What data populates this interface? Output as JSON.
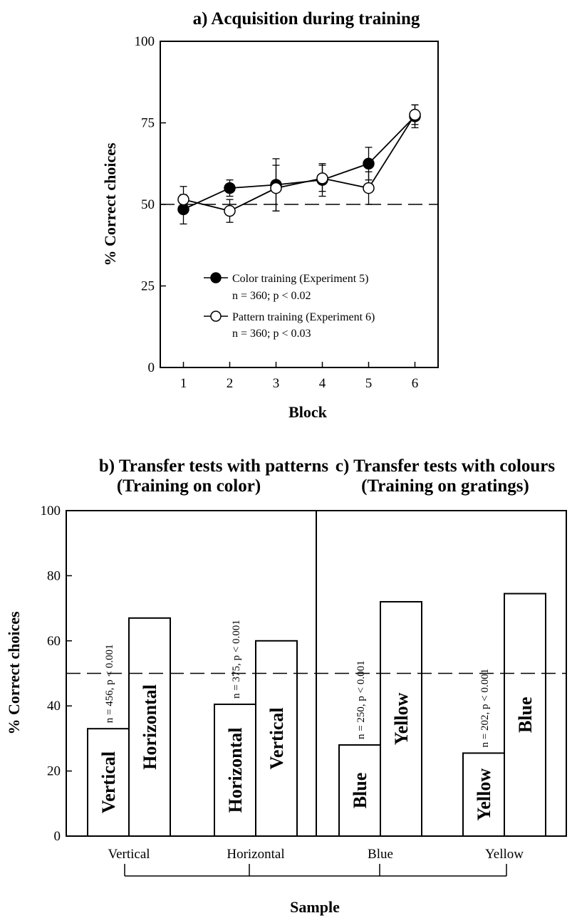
{
  "chart_data": [
    {
      "type": "line",
      "title": "a) Acquisition during training",
      "xlabel": "Block",
      "ylabel": "% Correct choices",
      "x": [
        1,
        2,
        3,
        4,
        5,
        6
      ],
      "xlim": [
        0.5,
        6.5
      ],
      "ylim": [
        0,
        100
      ],
      "yticks": [
        0,
        25,
        50,
        75,
        100
      ],
      "chance_line": 50,
      "legend_position": "bottom-right",
      "series": [
        {
          "name": "Color training  (Experiment 5)",
          "stats": "n = 360; p < 0.02",
          "marker": "filled-circle",
          "values": [
            48.5,
            55,
            56,
            57.5,
            62.5,
            77
          ],
          "errors": [
            4.5,
            2.5,
            8,
            5,
            5,
            3.5
          ]
        },
        {
          "name": "Pattern training  (Experiment 6)",
          "stats": "n = 360; p < 0.03",
          "marker": "open-circle",
          "values": [
            51.5,
            48,
            55,
            58,
            55,
            77.5
          ],
          "errors": [
            4,
            3.5,
            7,
            4,
            5,
            3
          ]
        }
      ]
    },
    {
      "type": "bar",
      "title_b_line1": "b) Transfer tests with patterns",
      "title_b_line2": "(Training on color)",
      "title_c_line1": "c) Transfer tests with colours",
      "title_c_line2": "(Training on gratings)",
      "xlabel": "Sample",
      "ylabel": "% Correct choices",
      "ylim": [
        0,
        100
      ],
      "yticks": [
        0,
        20,
        40,
        60,
        80,
        100
      ],
      "chance_line": 50,
      "groups": [
        {
          "sample": "Vertical",
          "stats": "n = 456, p < 0.001",
          "bars": [
            {
              "label": "Vertical",
              "value": 33
            },
            {
              "label": "Horizontal",
              "value": 67
            }
          ]
        },
        {
          "sample": "Horizontal",
          "stats": "n = 375, p < 0.001",
          "bars": [
            {
              "label": "Horizontal",
              "value": 40.5
            },
            {
              "label": "Vertical",
              "value": 60
            }
          ]
        },
        {
          "sample": "Blue",
          "stats": "n = 250, p < 0.001",
          "bars": [
            {
              "label": "Blue",
              "value": 28
            },
            {
              "label": "Yellow",
              "value": 72
            }
          ]
        },
        {
          "sample": "Yellow",
          "stats": "n = 202, p < 0.001",
          "bars": [
            {
              "label": "Yellow",
              "value": 25.5
            },
            {
              "label": "Blue",
              "value": 74.5
            }
          ]
        }
      ]
    }
  ]
}
